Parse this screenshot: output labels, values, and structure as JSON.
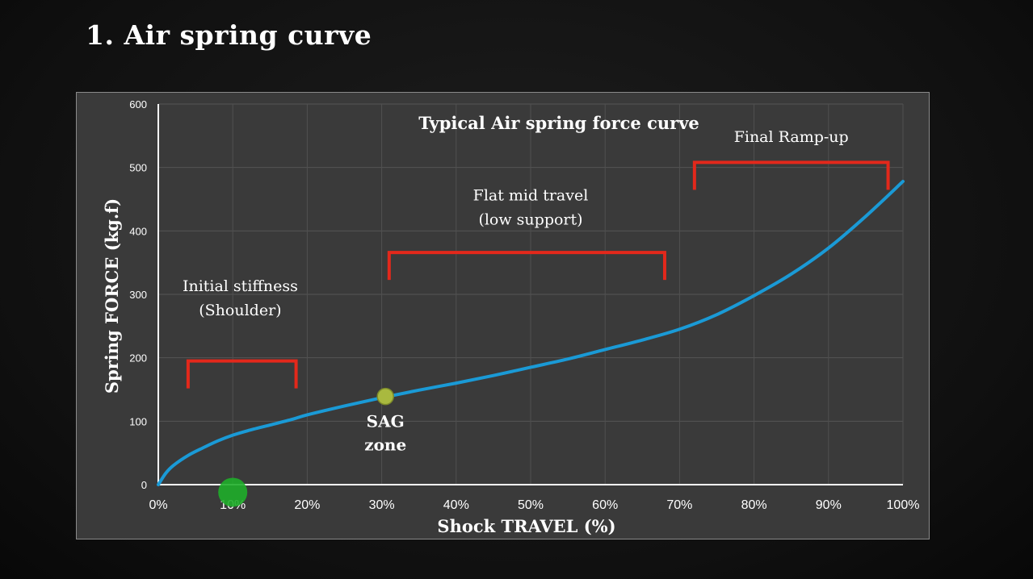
{
  "slide": {
    "title": "1. Air spring curve"
  },
  "colors": {
    "background": "#121212",
    "panel": "#3a3a3a",
    "curve": "#1a9ad6",
    "bracket": "#e3281b",
    "sag_marker": "#a9b93f",
    "green_marker": "#1fae2a",
    "text": "#ffffff"
  },
  "chart_data": {
    "type": "line",
    "title": "Typical Air spring force curve",
    "xlabel": "Shock TRAVEL (%)",
    "ylabel": "Spring FORCE (kg.f)",
    "xlim": [
      0,
      100
    ],
    "ylim": [
      0,
      600
    ],
    "x_ticks": [
      0,
      10,
      20,
      30,
      40,
      50,
      60,
      70,
      80,
      90,
      100
    ],
    "x_tick_labels": [
      "0%",
      "10%",
      "20%",
      "30%",
      "40%",
      "50%",
      "60%",
      "70%",
      "80%",
      "90%",
      "100%"
    ],
    "y_ticks": [
      0,
      100,
      200,
      300,
      400,
      500,
      600
    ],
    "y_tick_labels": [
      "0",
      "100",
      "200",
      "300",
      "400",
      "500",
      "600"
    ],
    "grid": true,
    "series": [
      {
        "color": "#1a9ad6",
        "x": [
          0,
          1,
          2,
          4,
          6,
          8,
          10,
          12,
          15,
          18,
          20,
          25,
          30,
          35,
          40,
          45,
          50,
          55,
          60,
          65,
          70,
          75,
          80,
          85,
          90,
          95,
          100
        ],
        "y": [
          0,
          18,
          30,
          46,
          58,
          69,
          78,
          85,
          94,
          103,
          110,
          124,
          137,
          149,
          160,
          172,
          185,
          198,
          213,
          228,
          245,
          268,
          298,
          332,
          373,
          423,
          478
        ]
      }
    ],
    "annotations": [
      {
        "id": "initial",
        "lines": [
          "Initial stiffness",
          "(Shoulder)"
        ],
        "bracket_x": [
          4,
          18.5
        ],
        "bracket_y": 195,
        "label_x": 11,
        "label_y": 305
      },
      {
        "id": "flat",
        "lines": [
          "Flat mid travel",
          "(low support)"
        ],
        "bracket_x": [
          31,
          68
        ],
        "bracket_y": 366,
        "label_x": 50,
        "label_y": 448
      },
      {
        "id": "ramp",
        "lines": [
          "Final Ramp-up"
        ],
        "bracket_x": [
          72,
          98
        ],
        "bracket_y": 508,
        "label_x": 85,
        "label_y": 540
      }
    ],
    "markers": [
      {
        "id": "sag",
        "label_lines": [
          "SAG",
          "zone"
        ],
        "x": 30.5,
        "y": 139,
        "color": "#a9b93f"
      },
      {
        "id": "green",
        "x": 10,
        "y": -12,
        "color": "#1fae2a"
      }
    ]
  }
}
